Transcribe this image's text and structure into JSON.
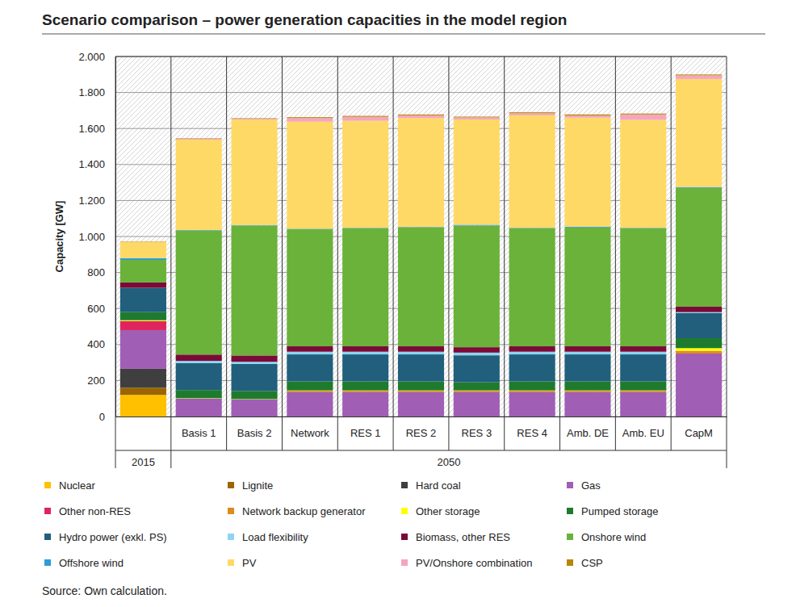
{
  "chart_data": {
    "type": "bar",
    "title": "Scenario comparison – power generation capacities in the model region",
    "y_label": "Capacity [GW]",
    "source": "Source: Own calculation.",
    "stacked": true,
    "grid": true,
    "legend": "bottom",
    "categories": [
      null,
      "Basis 1",
      "Basis 2",
      "Network",
      "RES 1",
      "RES 2",
      "RES 3",
      "RES 4",
      "Amb. DE",
      "Amb. EU",
      "CapM"
    ],
    "groups": [
      {
        "label": "2015",
        "span": 1
      },
      {
        "label": "2050",
        "span": 10
      }
    ],
    "ylim": [
      0,
      2000
    ],
    "yticks": [
      0,
      200,
      400,
      600,
      800,
      {
        "value": 1000,
        "label": "1.000"
      },
      {
        "value": 1200,
        "label": "1.200"
      },
      {
        "value": 1400,
        "label": "1.400"
      },
      {
        "value": 1600,
        "label": "1.600"
      },
      {
        "value": 1800,
        "label": "1.800"
      },
      {
        "value": 2000,
        "label": "2.000"
      }
    ],
    "series": [
      {
        "name": "Nuclear",
        "color": "#ffc000",
        "values": [
          120,
          0,
          0,
          0,
          0,
          0,
          0,
          0,
          0,
          0,
          0
        ]
      },
      {
        "name": "Lignite",
        "color": "#9c6500",
        "values": [
          40,
          0,
          0,
          0,
          0,
          0,
          0,
          0,
          0,
          0,
          0
        ]
      },
      {
        "name": "Hard coal",
        "color": "#3f3f3f",
        "values": [
          105,
          0,
          0,
          0,
          0,
          0,
          0,
          0,
          0,
          0,
          0
        ]
      },
      {
        "name": "Gas",
        "color": "#a05eb5",
        "values": [
          215,
          100,
          95,
          135,
          135,
          135,
          135,
          135,
          135,
          135,
          350
        ]
      },
      {
        "name": "Other non-RES",
        "color": "#e0245e",
        "values": [
          50,
          0,
          0,
          0,
          0,
          0,
          0,
          0,
          0,
          0,
          0
        ]
      },
      {
        "name": "Network backup generator",
        "color": "#e08a1e",
        "values": [
          0,
          0,
          0,
          8,
          8,
          8,
          8,
          8,
          8,
          8,
          15
        ]
      },
      {
        "name": "Other storage",
        "color": "#ffff00",
        "values": [
          5,
          2,
          2,
          2,
          2,
          2,
          2,
          2,
          2,
          2,
          15
        ]
      },
      {
        "name": "Pumped storage",
        "color": "#1e7b2e",
        "values": [
          45,
          45,
          45,
          50,
          50,
          50,
          45,
          50,
          50,
          50,
          55
        ]
      },
      {
        "name": "Hydro power (exkl. PS)",
        "color": "#215f7d",
        "values": [
          135,
          150,
          150,
          150,
          150,
          150,
          150,
          150,
          150,
          150,
          140
        ]
      },
      {
        "name": "Load flexibility",
        "color": "#8dd5f0",
        "values": [
          0,
          12,
          12,
          15,
          15,
          15,
          15,
          15,
          15,
          15,
          5
        ]
      },
      {
        "name": "Biomass, other RES",
        "color": "#7b0a38",
        "values": [
          30,
          35,
          35,
          30,
          30,
          30,
          30,
          30,
          30,
          30,
          30
        ]
      },
      {
        "name": "Onshore wind",
        "color": "#6ab23a",
        "values": [
          125,
          690,
          722,
          650,
          655,
          660,
          675,
          655,
          660,
          655,
          660
        ]
      },
      {
        "name": "Offshore wind",
        "color": "#2e9cd6",
        "values": [
          10,
          3,
          3,
          3,
          3,
          3,
          5,
          3,
          5,
          3,
          5
        ]
      },
      {
        "name": "PV",
        "color": "#ffd966",
        "values": [
          90,
          500,
          585,
          595,
          595,
          605,
          585,
          625,
          605,
          600,
          600
        ]
      },
      {
        "name": "PV/Onshore combination",
        "color": "#f4a6be",
        "values": [
          0,
          5,
          5,
          20,
          22,
          15,
          12,
          12,
          12,
          30,
          20
        ]
      },
      {
        "name": "CSP",
        "color": "#b8860b",
        "values": [
          2,
          3,
          3,
          5,
          5,
          5,
          4,
          5,
          6,
          5,
          5
        ]
      }
    ]
  }
}
